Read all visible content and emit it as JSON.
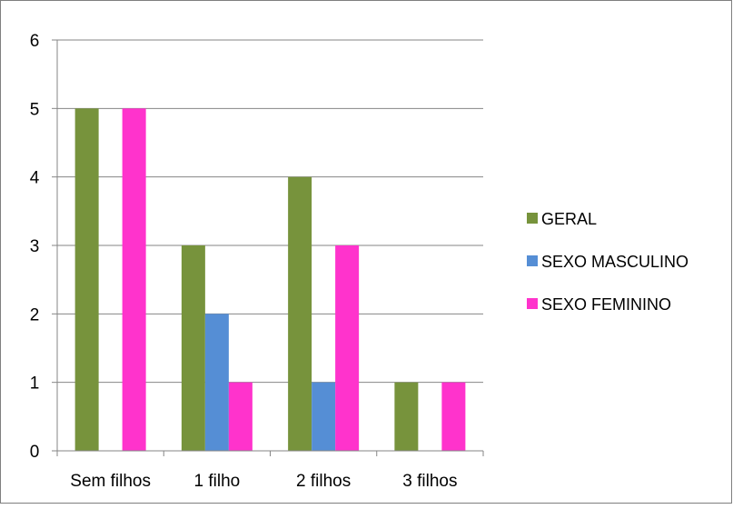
{
  "chart_data": {
    "type": "bar",
    "title": "",
    "xlabel": "",
    "ylabel": "",
    "categories": [
      "Sem filhos",
      "1 filho",
      "2 filhos",
      "3 filhos"
    ],
    "ylim": [
      0,
      6
    ],
    "yticks": [
      "0",
      "1",
      "2",
      "3",
      "4",
      "5",
      "6"
    ],
    "grid": true,
    "legend_position": "right",
    "series": [
      {
        "name": "GERAL",
        "color": "#77933C",
        "values": [
          5,
          3,
          4,
          1
        ]
      },
      {
        "name": "SEXO MASCULINO",
        "color": "#558ED5",
        "values": [
          0,
          2,
          1,
          0
        ]
      },
      {
        "name": "SEXO FEMININO",
        "color": "#FF33CC",
        "values": [
          5,
          1,
          3,
          1
        ]
      }
    ]
  }
}
